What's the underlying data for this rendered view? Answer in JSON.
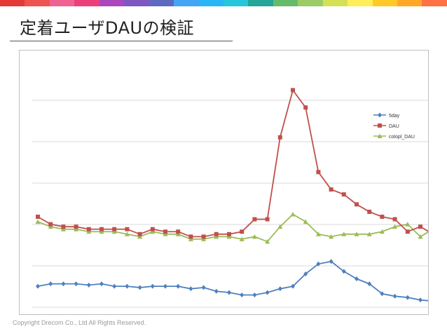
{
  "slide": {
    "title": "定着ユーザDAUの検証",
    "footer": "Copyright Drecom Co., Ltd All Rights Reserved.",
    "rainbow_colors": [
      "#e53935",
      "#ef5350",
      "#f06292",
      "#ec407a",
      "#ab47bc",
      "#7e57c2",
      "#5c6bc0",
      "#42a5f5",
      "#29b6f6",
      "#26c6da",
      "#26a69a",
      "#66bb6a",
      "#9ccc65",
      "#d4e157",
      "#ffee58",
      "#ffca28",
      "#ffa726",
      "#ff7043"
    ]
  },
  "chart_data": {
    "type": "line",
    "title": "",
    "xlabel": "",
    "ylabel": "",
    "grid": true,
    "legend_position": "top-right",
    "ylim": [
      0,
      100
    ],
    "x": [
      1,
      2,
      3,
      4,
      5,
      6,
      7,
      8,
      9,
      10,
      11,
      12,
      13,
      14,
      15,
      16,
      17,
      18,
      19,
      20,
      21,
      22,
      23,
      24,
      25,
      26,
      27,
      28,
      29,
      30,
      31,
      32
    ],
    "series": [
      {
        "name": "5day",
        "color": "#4f81bd",
        "marker": "diamond",
        "values": [
          9,
          10,
          10,
          10,
          9.5,
          10,
          9,
          9,
          8.5,
          9,
          9,
          9,
          8,
          8.5,
          7,
          6.5,
          5.5,
          5.5,
          6.5,
          8,
          9,
          14,
          18,
          19,
          15,
          12,
          10,
          6,
          5,
          4.5,
          3.5,
          3
        ]
      },
      {
        "name": "DAU",
        "color": "#c0504d",
        "marker": "square",
        "values": [
          37,
          34,
          33,
          33,
          32,
          32,
          32,
          32,
          30,
          32,
          31,
          31,
          29,
          29,
          30,
          30,
          31,
          36,
          36,
          69,
          88,
          81,
          55,
          48,
          46,
          42,
          39,
          37,
          36,
          31,
          33,
          30
        ]
      },
      {
        "name": "colopl_DAU",
        "color": "#9bbb59",
        "marker": "triangle",
        "values": [
          35,
          33,
          32,
          32,
          31,
          31,
          31,
          30,
          29,
          31,
          30,
          30,
          28,
          28,
          29,
          29,
          28,
          29,
          27,
          33,
          38,
          35,
          30,
          29,
          30,
          30,
          30,
          31,
          33,
          34,
          29,
          32
        ]
      }
    ]
  }
}
